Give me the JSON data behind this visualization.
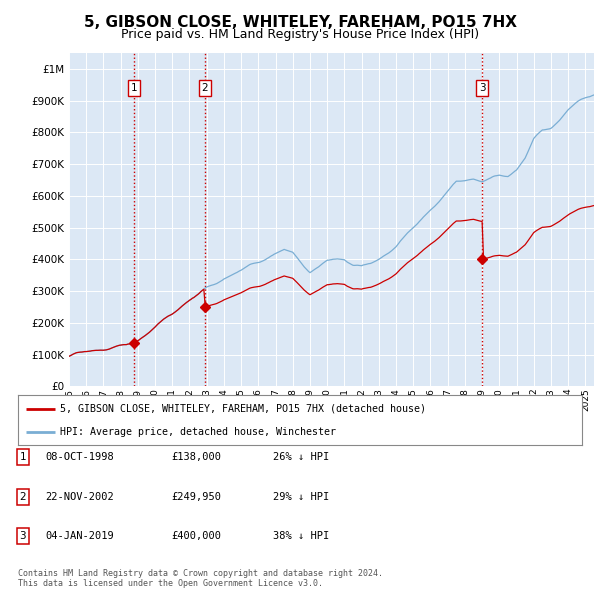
{
  "title": "5, GIBSON CLOSE, WHITELEY, FAREHAM, PO15 7HX",
  "subtitle": "Price paid vs. HM Land Registry's House Price Index (HPI)",
  "ytick_values": [
    0,
    100000,
    200000,
    300000,
    400000,
    500000,
    600000,
    700000,
    800000,
    900000,
    1000000
  ],
  "ylim": [
    0,
    1050000
  ],
  "xlim_start": 1995.25,
  "xlim_end": 2025.5,
  "sale_dates_num": [
    1998.77,
    2002.9,
    2019.01
  ],
  "sale_prices": [
    138000,
    249950,
    400000
  ],
  "sale_labels": [
    "1",
    "2",
    "3"
  ],
  "vline_color": "#cc0000",
  "vline_style": ":",
  "sale_marker_color": "#cc0000",
  "hpi_color": "#7aaed4",
  "price_paid_color": "#cc0000",
  "legend_label_price": "5, GIBSON CLOSE, WHITELEY, FAREHAM, PO15 7HX (detached house)",
  "legend_label_hpi": "HPI: Average price, detached house, Winchester",
  "table_rows": [
    [
      "1",
      "08-OCT-1998",
      "£138,000",
      "26% ↓ HPI"
    ],
    [
      "2",
      "22-NOV-2002",
      "£249,950",
      "29% ↓ HPI"
    ],
    [
      "3",
      "04-JAN-2019",
      "£400,000",
      "38% ↓ HPI"
    ]
  ],
  "footer": "Contains HM Land Registry data © Crown copyright and database right 2024.\nThis data is licensed under the Open Government Licence v3.0.",
  "background_color": "#ffffff",
  "plot_bg_color": "#dce8f5",
  "grid_color": "#ffffff",
  "title_fontsize": 11,
  "subtitle_fontsize": 9,
  "tick_fontsize": 7.5,
  "xtick_years": [
    1995,
    1996,
    1997,
    1998,
    1999,
    2000,
    2001,
    2002,
    2003,
    2004,
    2005,
    2006,
    2007,
    2008,
    2009,
    2010,
    2011,
    2012,
    2013,
    2014,
    2015,
    2016,
    2017,
    2018,
    2019,
    2020,
    2021,
    2022,
    2023,
    2024,
    2025
  ]
}
